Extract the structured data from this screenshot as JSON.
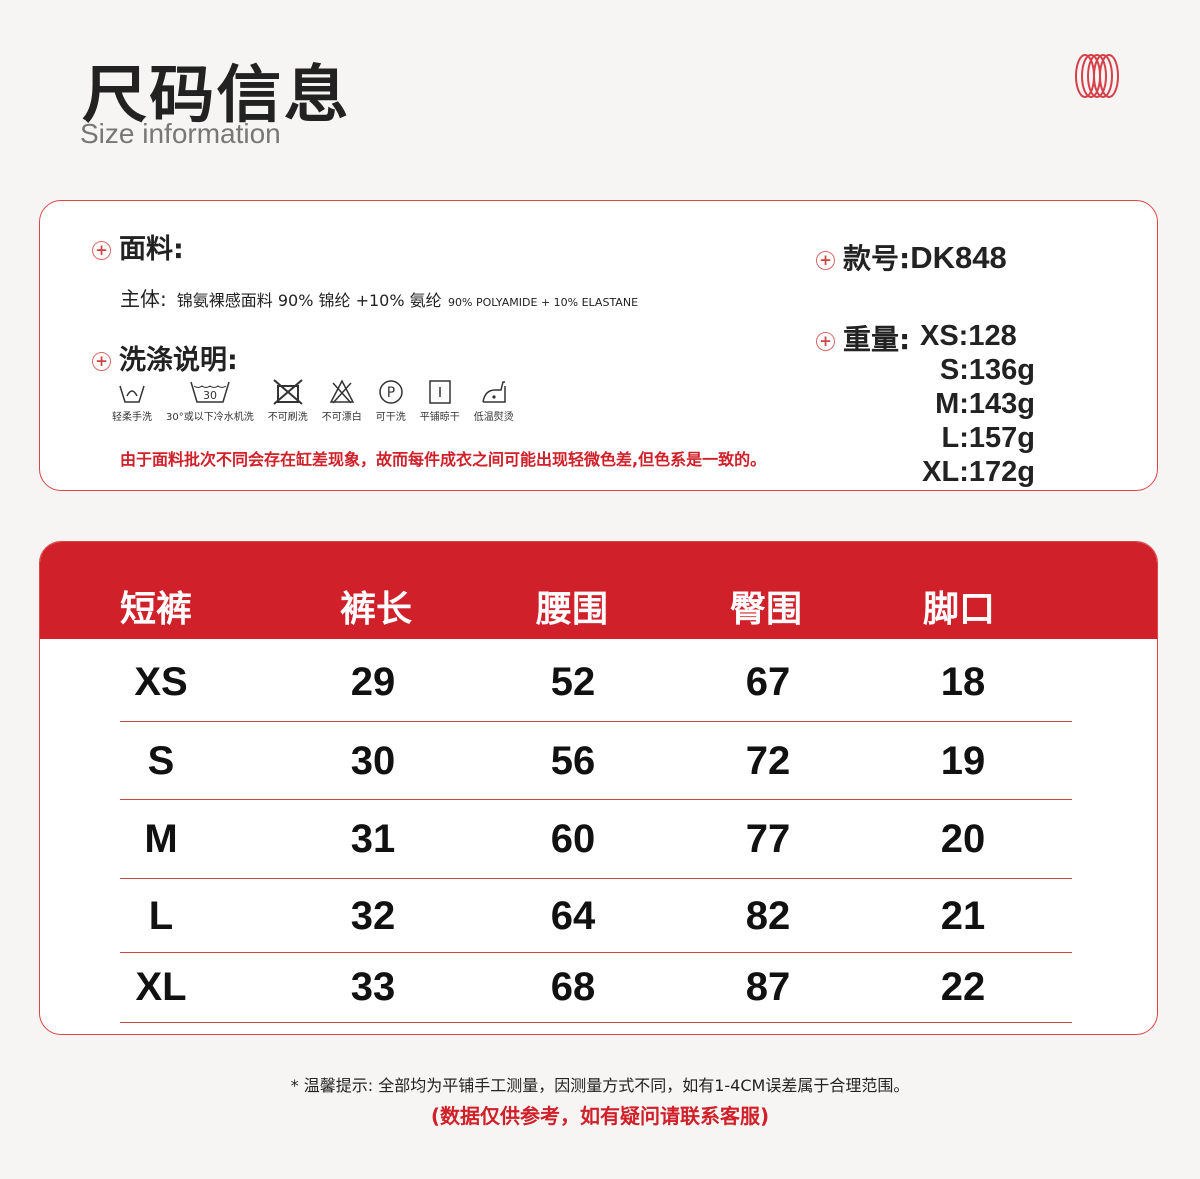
{
  "header": {
    "title": "尺码信息",
    "subtitle": "Size information",
    "logo": "red-coil-rings-logo"
  },
  "info": {
    "fabric_label": "面料:",
    "fabric_main": "主体:",
    "fabric_text": "锦氨裸感面料 90% 锦纶 +10% 氨纶",
    "fabric_en": "90% POLYAMIDE + 10% ELASTANE",
    "wash_label": "洗涤说明:",
    "care": [
      {
        "icon": "hand-wash-icon",
        "label": "轻柔手洗"
      },
      {
        "icon": "machine-wash-30-icon",
        "label": "30°或以下冷水机洗",
        "temp": "30"
      },
      {
        "icon": "no-brush-icon",
        "label": "不可刷洗"
      },
      {
        "icon": "no-bleach-icon",
        "label": "不可漂白"
      },
      {
        "icon": "dry-clean-p-icon",
        "label": "可干洗",
        "letter": "P"
      },
      {
        "icon": "dry-flat-icon",
        "label": "平铺晾干"
      },
      {
        "icon": "iron-low-icon",
        "label": "低温熨烫"
      }
    ],
    "note": "由于面料批次不同会存在缸差现象，故而每件成衣之间可能出现轻微色差,但色系是一致的。",
    "style_label": "款号:",
    "style_no": "DK848",
    "weight_label": "重量:",
    "weights": [
      "XS:128",
      "S:136g",
      "M:143g",
      "L:157g",
      "XL:172g"
    ]
  },
  "table": {
    "headers": [
      "短裤",
      "裤长",
      "腰围",
      "臀围",
      "脚口"
    ],
    "rows": [
      [
        "XS",
        "29",
        "52",
        "67",
        "18"
      ],
      [
        "S",
        "30",
        "56",
        "72",
        "19"
      ],
      [
        "M",
        "31",
        "60",
        "77",
        "20"
      ],
      [
        "L",
        "32",
        "64",
        "82",
        "21"
      ],
      [
        "XL",
        "33",
        "68",
        "87",
        "22"
      ]
    ],
    "accent": "#d0202a"
  },
  "footer": {
    "tip": "* 温馨提示: 全部均为平铺手工测量，因测量方式不同，如有1-4CM误差属于合理范围。",
    "tip2": "(数据仅供参考，如有疑问请联系客服)"
  }
}
